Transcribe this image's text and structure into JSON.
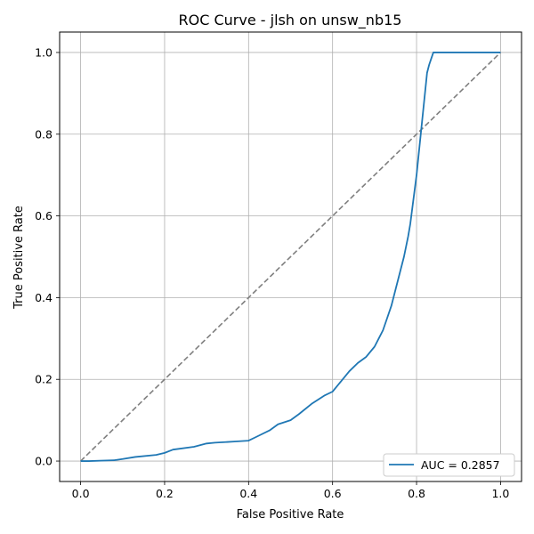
{
  "chart_data": {
    "type": "line",
    "title": "ROC Curve - jlsh on unsw_nb15",
    "xlabel": "False Positive Rate",
    "ylabel": "True Positive Rate",
    "xlim": [
      -0.05,
      1.05
    ],
    "ylim": [
      -0.05,
      1.05
    ],
    "xticks": [
      "0.0",
      "0.2",
      "0.4",
      "0.6",
      "0.8",
      "1.0"
    ],
    "yticks": [
      "0.0",
      "0.2",
      "0.4",
      "0.6",
      "0.8",
      "1.0"
    ],
    "grid": true,
    "legend_position": "lower-right",
    "series": [
      {
        "name": "AUC = 0.2857",
        "color": "#1f77b4",
        "style": "solid",
        "x": [
          0.0,
          0.02,
          0.08,
          0.1,
          0.13,
          0.18,
          0.2,
          0.22,
          0.27,
          0.3,
          0.32,
          0.37,
          0.4,
          0.42,
          0.45,
          0.47,
          0.5,
          0.52,
          0.55,
          0.58,
          0.6,
          0.62,
          0.64,
          0.66,
          0.68,
          0.7,
          0.71,
          0.72,
          0.73,
          0.74,
          0.75,
          0.76,
          0.77,
          0.78,
          0.785,
          0.79,
          0.795,
          0.8,
          0.805,
          0.81,
          0.815,
          0.82,
          0.825,
          0.83,
          0.835,
          0.84,
          0.85,
          0.9,
          1.0
        ],
        "y": [
          0.0,
          0.0,
          0.002,
          0.005,
          0.01,
          0.015,
          0.02,
          0.028,
          0.035,
          0.043,
          0.045,
          0.048,
          0.05,
          0.06,
          0.075,
          0.09,
          0.1,
          0.115,
          0.14,
          0.16,
          0.17,
          0.195,
          0.22,
          0.24,
          0.255,
          0.28,
          0.3,
          0.32,
          0.35,
          0.38,
          0.42,
          0.46,
          0.5,
          0.55,
          0.58,
          0.62,
          0.66,
          0.7,
          0.75,
          0.8,
          0.85,
          0.9,
          0.95,
          0.97,
          0.985,
          1.0,
          1.0,
          1.0,
          1.0
        ]
      },
      {
        "name": "",
        "color": "#7f7f7f",
        "style": "dashed",
        "x": [
          0.0,
          1.0
        ],
        "y": [
          0.0,
          1.0
        ]
      }
    ]
  }
}
